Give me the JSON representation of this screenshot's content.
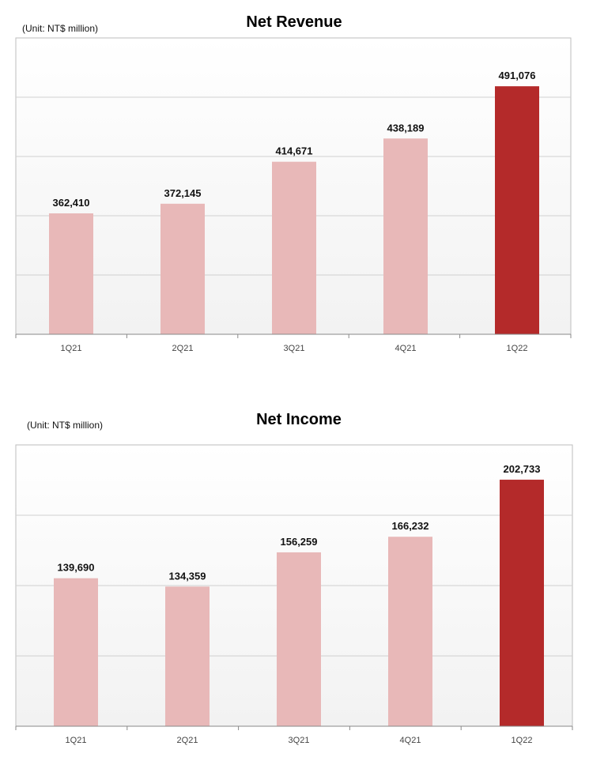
{
  "chart_data": [
    {
      "type": "bar",
      "title": "Net Revenue",
      "unit_label": "(Unit: NT$ million)",
      "categories": [
        "1Q21",
        "2Q21",
        "3Q21",
        "4Q21",
        "1Q22"
      ],
      "values": [
        362410,
        372145,
        414671,
        438189,
        491076
      ],
      "value_labels": [
        "362,410",
        "372,145",
        "414,671",
        "438,189",
        "491,076"
      ],
      "ylim": [
        240000,
        540000
      ],
      "gridlines": [
        300000,
        360000,
        420000,
        480000
      ],
      "grid": true,
      "bar_colors": [
        "#e8b8b8",
        "#e8b8b8",
        "#e8b8b8",
        "#e8b8b8",
        "#b42a2a"
      ]
    },
    {
      "type": "bar",
      "title": "Net Income",
      "unit_label": "(Unit: NT$ million)",
      "categories": [
        "1Q21",
        "2Q21",
        "3Q21",
        "4Q21",
        "1Q22"
      ],
      "values": [
        139690,
        134359,
        156259,
        166232,
        202733
      ],
      "value_labels": [
        "139,690",
        "134,359",
        "156,259",
        "166,232",
        "202,733"
      ],
      "ylim": [
        45000,
        225000
      ],
      "gridlines": [
        90000,
        135000,
        180000
      ],
      "grid": true,
      "bar_colors": [
        "#e8b8b8",
        "#e8b8b8",
        "#e8b8b8",
        "#e8b8b8",
        "#b42a2a"
      ]
    }
  ]
}
